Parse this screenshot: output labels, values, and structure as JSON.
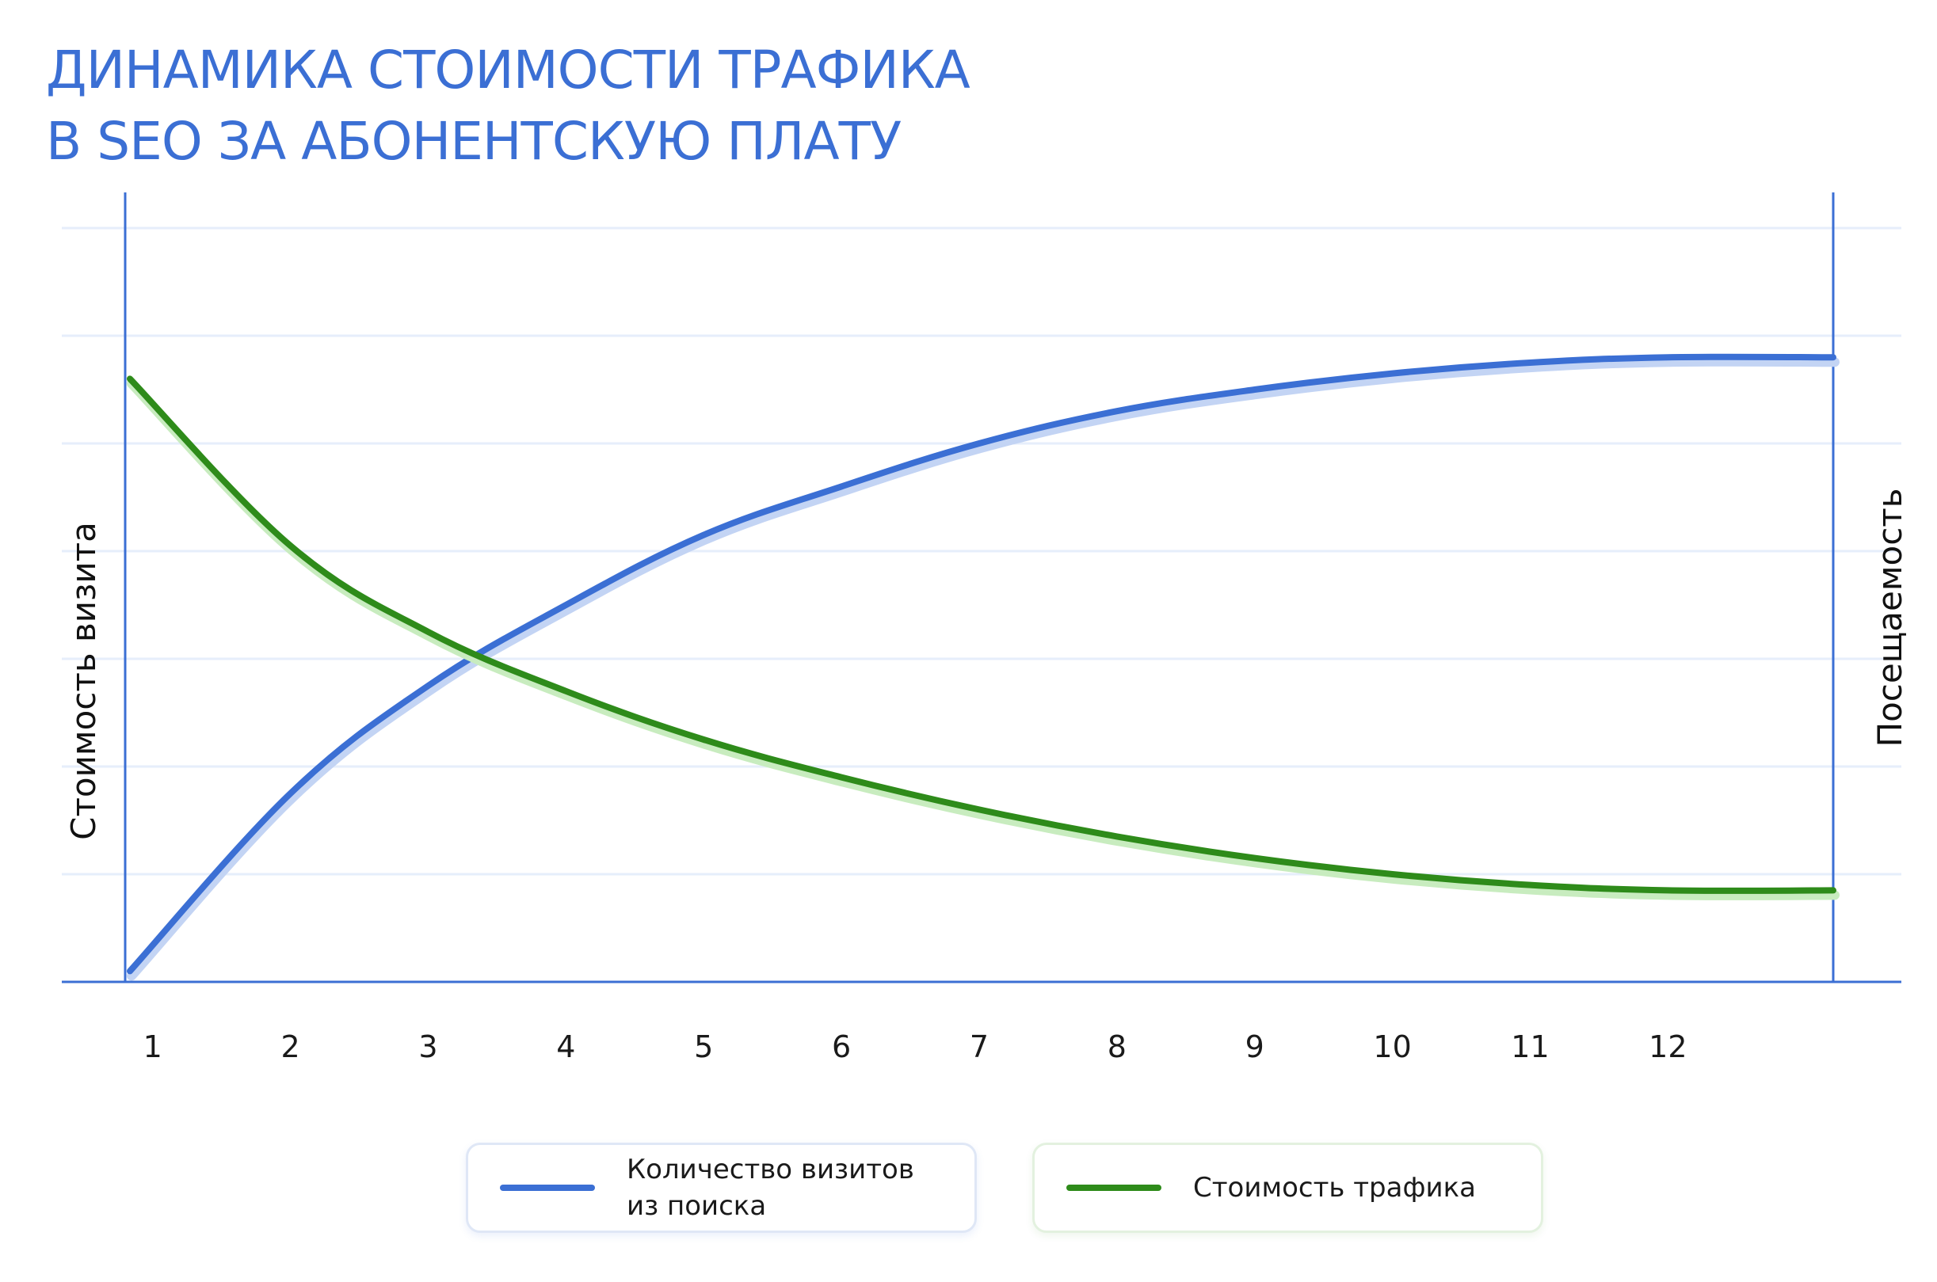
{
  "title": {
    "line1": "ДИНАМИКА СТОИМОСТИ ТРАФИКА",
    "line2": "В SEO ЗА АБОНЕНТСКУЮ ПЛАТУ"
  },
  "colors": {
    "title": "#3b6fd4",
    "axis": "#3b6fd4",
    "grid": "#e6eefb",
    "visits": "#3b6fd4",
    "cost": "#2e8b1a"
  },
  "chart_data": {
    "type": "line",
    "x": [
      1,
      2,
      3,
      4,
      5,
      6,
      7,
      8,
      9,
      10,
      11,
      12
    ],
    "xlim": [
      0.8,
      13.2
    ],
    "ylim": [
      0,
      7
    ],
    "grid": true,
    "ylabel_left": "Стоимость визита",
    "ylabel_right": "Посещаемость",
    "series": [
      {
        "name": "Количество визитов из поиска",
        "axis": "right",
        "values": [
          0.1,
          1.75,
          2.75,
          3.5,
          4.15,
          4.6,
          5.0,
          5.3,
          5.5,
          5.65,
          5.75,
          5.8
        ]
      },
      {
        "name": "Стоимость трафика",
        "axis": "left",
        "values": [
          5.6,
          4.05,
          3.25,
          2.7,
          2.25,
          1.9,
          1.6,
          1.35,
          1.15,
          1.0,
          0.9,
          0.85
        ]
      }
    ]
  },
  "legend": {
    "visits_line1": "Количество визитов",
    "visits_line2": "из поиска",
    "cost": "Стоимость трафика"
  }
}
